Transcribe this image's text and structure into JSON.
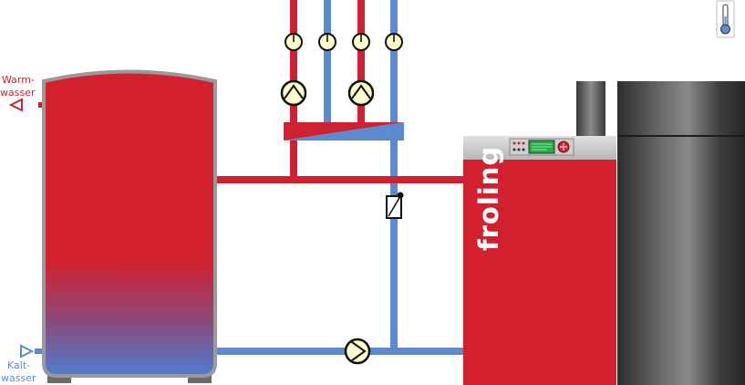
{
  "labels": {
    "warm_line1": "Warm-",
    "warm_line2": "wasser",
    "cold_line1": "Kalt-",
    "cold_line2": "wasser"
  },
  "boiler": {
    "brand": "froling"
  },
  "colors": {
    "hot": "#d3202f",
    "cold": "#5b8bd0",
    "pipe_hot": "#cf2230",
    "pipe_cold": "#5c8ad1",
    "tank_outline": "#9a9a9a",
    "gauge_fill": "#ffffcc",
    "display_green": "#22aa44"
  },
  "icons": {
    "thermometer": "thermometer-icon",
    "warm_outlet": "triangle-left-icon",
    "cold_inlet": "triangle-right-icon",
    "pump": "pump-icon",
    "valve": "mixing-valve-icon"
  }
}
